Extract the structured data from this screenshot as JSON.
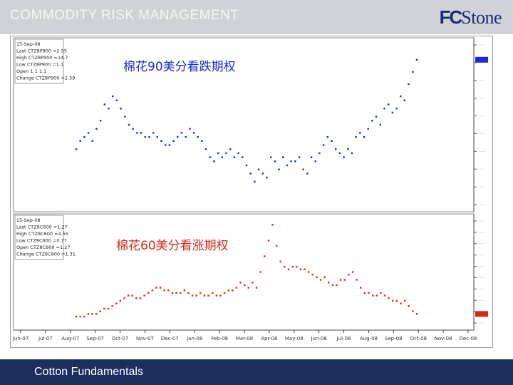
{
  "header": {
    "title": "COMMODITY RISK MANAGEMENT",
    "logo_fc": "FC",
    "logo_stone": "Stone"
  },
  "footer": {
    "label": "Cotton Fundamentals"
  },
  "colors": {
    "header_bg": "#cfd3d8",
    "footer_bg": "#1b2e5e",
    "put_series": "#1a2ad6",
    "call_series": "#d42a1a"
  },
  "chart_data": [
    {
      "type": "scatter",
      "title": "棉花90美分看跌期权",
      "info_box": [
        "15-Sep-08",
        "Last CTZ8P900 =2.55",
        "High CTZ8P900 =14.7",
        "Low CTZ8P900 =1.1",
        "Open 1.1 1.1",
        "Change CTZ8P900 =2.59"
      ],
      "x_tick_labels": [
        "Jun-07",
        "Jul-07",
        "Aug-07",
        "Sep-07",
        "Oct-07",
        "Nov-07",
        "Dec-07",
        "Jan-08",
        "Feb-08",
        "Mar-08",
        "Apr-08",
        "May-08",
        "Jun-08",
        "Jul-08",
        "Aug-08",
        "Sep-08",
        "Oct-08",
        "Nov-08",
        "Dec-08"
      ],
      "y_range": [
        0,
        40
      ],
      "series": [
        {
          "color": "#1a2ad6",
          "values": [
            14,
            16,
            17,
            18,
            16,
            19,
            21,
            25,
            24,
            27,
            26,
            24,
            22,
            20,
            19,
            18,
            18,
            17,
            17,
            18,
            17,
            16,
            15,
            15,
            16,
            17,
            18,
            17,
            19,
            18,
            17,
            16,
            14,
            12,
            11,
            13,
            12,
            13,
            14,
            12,
            13,
            12,
            10,
            8,
            6,
            9,
            8,
            7,
            12,
            11,
            9,
            12,
            10,
            11,
            11,
            12,
            9,
            8,
            12,
            11,
            13,
            15,
            17,
            16,
            14,
            13,
            12,
            14,
            13,
            17,
            18,
            17,
            19,
            21,
            22,
            20,
            24,
            25,
            23,
            24,
            27,
            26,
            30,
            33,
            36
          ]
        }
      ]
    },
    {
      "type": "scatter",
      "title": "棉花60美分看涨期权",
      "info_box": [
        "15-Sep-08",
        "Last CTZ8C600 =1.27",
        "High CTZ8C600 =4.55",
        "Low CTZ8C600 =0.77",
        "Open CTZ8C600 =1.27",
        "Change CTZ8C600 =1.31"
      ],
      "x_tick_labels": [
        "Jun-07",
        "Jul-07",
        "Aug-07",
        "Sep-07",
        "Oct-07",
        "Nov-07",
        "Dec-07",
        "Jan-08",
        "Feb-08",
        "Mar-08",
        "Apr-08",
        "May-08",
        "Jun-08",
        "Jul-08",
        "Aug-08",
        "Sep-08",
        "Oct-08",
        "Nov-08",
        "Dec-08"
      ],
      "y_range": [
        0,
        40
      ],
      "series": [
        {
          "color": "#d42a1a",
          "values": [
            3,
            3,
            3,
            4,
            4,
            4,
            5,
            6,
            6,
            7,
            8,
            9,
            10,
            11,
            11,
            10,
            10,
            11,
            12,
            13,
            14,
            14,
            13,
            13,
            12,
            12,
            12,
            13,
            12,
            11,
            11,
            12,
            11,
            11,
            12,
            11,
            11,
            12,
            13,
            13,
            14,
            16,
            15,
            14,
            16,
            14,
            20,
            26,
            32,
            38,
            30,
            24,
            22,
            21,
            22,
            22,
            21,
            21,
            20,
            19,
            18,
            17,
            18,
            16,
            15,
            15,
            17,
            17,
            19,
            20,
            17,
            14,
            12,
            12,
            11,
            11,
            12,
            11,
            10,
            9,
            9,
            8,
            9,
            7,
            5,
            4
          ]
        }
      ]
    }
  ]
}
